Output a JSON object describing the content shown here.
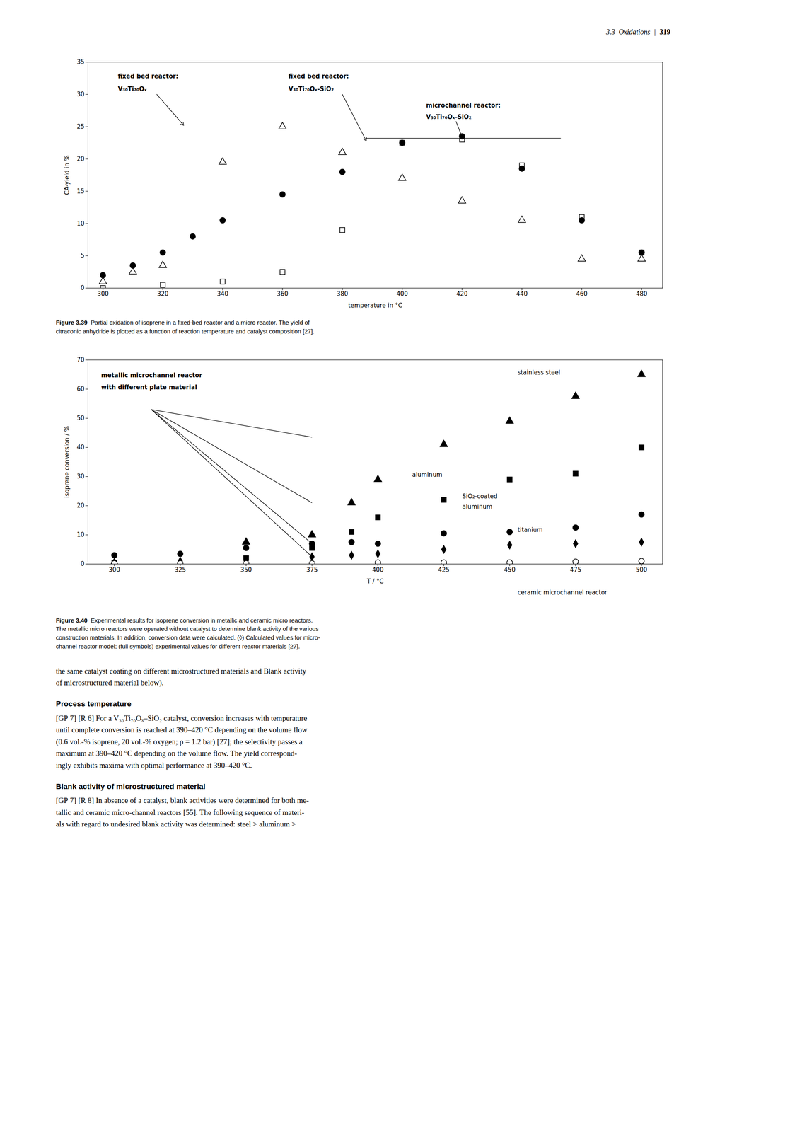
{
  "page": {
    "header": {
      "text": "3.3  Oxidations",
      "separator": "|",
      "page_number": "319"
    },
    "body": [
      {
        "lines": [
          "the same catalyst coating on different microstructured materials and Blank activity",
          "of microstructured material below)."
        ]
      },
      {
        "heading": "Process temperature",
        "lines": [
          "[GP 7] [R 6] For a V₃₀Ti₇₀Oₓ–SiO₂ catalyst, conversion increases with temperature",
          "until complete conversion is reached at 390–420 °C depending on the volume flow",
          "(0.6 vol.-% isoprene, 20 vol.-% oxygen; ρ = 1.2 bar) [27]; the selectivity passes a",
          "maximum at 390–420 °C depending on the volume flow. The yield correspond-",
          "ingly exhibits maxima with optimal performance at 390–420 °C."
        ]
      },
      {
        "heading": "Blank activity of microstructured material",
        "lines": [
          "[GP 7] [R 8] In absence of a catalyst, blank activities were determined for both me-",
          "tallic and ceramic micro-channel reactors [55]. The following sequence of materi-",
          "als with regard to undesired blank activity was determined: steel > aluminum >"
        ]
      }
    ]
  },
  "chart_data": [
    {
      "type": "scatter",
      "xlabel": "temperature in °C",
      "ylabel": "CA-yield in %",
      "xlim": [
        295,
        487
      ],
      "ylim": [
        0,
        35
      ],
      "xticks": [
        300,
        320,
        340,
        360,
        380,
        400,
        420,
        440,
        460,
        480
      ],
      "yticks": [
        0,
        5,
        10,
        15,
        20,
        25,
        30,
        35
      ],
      "grid": false,
      "series": [
        {
          "marker": "triangle-open",
          "color": "black",
          "x": [
            300,
            310,
            320,
            340,
            360,
            380,
            400,
            420,
            440,
            460,
            480
          ],
          "y": [
            1.0,
            2.5,
            3.5,
            19.5,
            25.0,
            21.0,
            17.0,
            13.5,
            10.5,
            4.5,
            4.5
          ]
        },
        {
          "marker": "square-open",
          "color": "black",
          "x": [
            300,
            320,
            340,
            360,
            380,
            400,
            420,
            440,
            460,
            480
          ],
          "y": [
            0.0,
            0.5,
            1.0,
            2.5,
            9.0,
            22.5,
            23.0,
            19.0,
            11.0,
            5.5
          ]
        },
        {
          "marker": "circle",
          "color": "black",
          "x": [
            300,
            310,
            320,
            330,
            340,
            360,
            380,
            400,
            420,
            440,
            460,
            480
          ],
          "y": [
            2.0,
            3.5,
            5.5,
            8.0,
            10.5,
            14.5,
            18.0,
            22.5,
            23.5,
            18.5,
            10.5,
            5.5
          ]
        }
      ],
      "annotations": [
        {
          "text": "fixed bed reactor:",
          "x": 305,
          "y": 32.5
        },
        {
          "text": "V₃₀Ti₇₀Oₓ",
          "x": 305,
          "y": 30.5
        },
        {
          "text": "fixed bed reactor:",
          "x": 362,
          "y": 32.5
        },
        {
          "text": "V₃₀Ti₇₀Oₓ-SiO₂",
          "x": 362,
          "y": 30.5
        },
        {
          "text": "microchannel reactor:",
          "x": 408,
          "y": 28.0
        },
        {
          "text": "V₃₀Ti₇₀Oₓ-SiO₂",
          "x": 408,
          "y": 26.2
        }
      ],
      "arrows": [
        {
          "from": [
            318,
            30.0
          ],
          "to": [
            327,
            25.2
          ]
        },
        {
          "from": [
            380,
            30.0
          ],
          "to": [
            388,
            22.8
          ]
        },
        {
          "from": [
            418,
            25.8
          ],
          "to": [
            420,
            23.4
          ]
        }
      ],
      "lines": [
        {
          "from": [
            388,
            23.2
          ],
          "to": [
            453,
            23.2
          ]
        }
      ],
      "caption": {
        "label": "Figure 3.39",
        "lines": [
          "  Partial oxidation of isoprene in a fixed-bed reactor and a micro reactor. The yield of",
          "citraconic anhydride is plotted as a function of reaction temperature and catalyst composition [27]."
        ]
      }
    },
    {
      "type": "scatter",
      "xlabel": "T / °C",
      "ylabel": "isoprene conversion / %",
      "xlim": [
        290,
        508
      ],
      "ylim": [
        0,
        70
      ],
      "xticks": [
        300,
        325,
        350,
        375,
        400,
        425,
        450,
        475,
        500
      ],
      "yticks": [
        0,
        10,
        20,
        30,
        40,
        50,
        60,
        70
      ],
      "grid": false,
      "series": [
        {
          "marker": "triangle",
          "color": "black",
          "x": [
            300,
            350,
            375,
            390,
            400,
            425,
            450,
            475,
            500
          ],
          "y": [
            0.5,
            7.5,
            10.0,
            21.0,
            29.0,
            41.0,
            49.0,
            57.5,
            65.0
          ]
        },
        {
          "marker": "square",
          "color": "black",
          "x": [
            300,
            350,
            375,
            390,
            400,
            425,
            450,
            475,
            500
          ],
          "y": [
            0.5,
            2.0,
            5.5,
            11.0,
            16.0,
            22.0,
            29.0,
            31.0,
            40.0
          ]
        },
        {
          "marker": "circle",
          "color": "black",
          "x": [
            300,
            325,
            350,
            375,
            390,
            400,
            425,
            450,
            475,
            500
          ],
          "y": [
            3.0,
            3.5,
            5.5,
            7.0,
            7.5,
            7.0,
            10.5,
            11.0,
            12.5,
            17.0
          ]
        },
        {
          "marker": "diamond",
          "color": "black",
          "x": [
            300,
            325,
            350,
            375,
            390,
            400,
            425,
            450,
            475,
            500
          ],
          "y": [
            0.5,
            1.0,
            1.5,
            2.5,
            3.0,
            3.5,
            5.0,
            6.5,
            7.0,
            7.5
          ]
        },
        {
          "marker": "circle-open",
          "color": "black",
          "x": [
            300,
            325,
            350,
            375,
            400,
            425,
            450,
            475,
            500
          ],
          "y": [
            0.2,
            0.2,
            0.2,
            0.2,
            0.5,
            0.5,
            0.5,
            0.8,
            1.0
          ]
        }
      ],
      "annotations": [
        {
          "text": "metallic microchannel reactor",
          "x": 295,
          "y": 64
        },
        {
          "text": "with different plate material",
          "x": 295,
          "y": 60
        }
      ],
      "series_labels": [
        {
          "text": "stainless steel",
          "x": 453,
          "y": 65
        },
        {
          "text": "aluminum",
          "x": 413,
          "y": 30
        },
        {
          "text": "SiO₂-coated",
          "x": 432,
          "y": 22.5
        },
        {
          "text": "aluminum",
          "x": 432,
          "y": 19.0
        },
        {
          "text": "titanium",
          "x": 453,
          "y": 11
        },
        {
          "text": "ceramic microchannel reactor",
          "x": 453,
          "y": -10.5
        }
      ],
      "arrows": [],
      "lines": [
        {
          "from": [
            314,
            53
          ],
          "to": [
            375,
            43.5
          ]
        },
        {
          "from": [
            314,
            53
          ],
          "to": [
            375,
            21.0
          ]
        },
        {
          "from": [
            314,
            53
          ],
          "to": [
            375,
            7.0
          ]
        },
        {
          "from": [
            314,
            53
          ],
          "to": [
            375,
            2.5
          ]
        }
      ],
      "caption": {
        "label": "Figure 3.40",
        "lines": [
          "  Experimental results for isoprene conversion in metallic and ceramic micro reactors.",
          "The metallic micro reactors were operated without catalyst to determine blank activity of the various",
          "construction materials. In addition, conversion data were calculated. (◊) Calculated values for micro-",
          "channel reactor model; (full symbols) experimental values for different reactor materials [27]."
        ]
      }
    }
  ]
}
